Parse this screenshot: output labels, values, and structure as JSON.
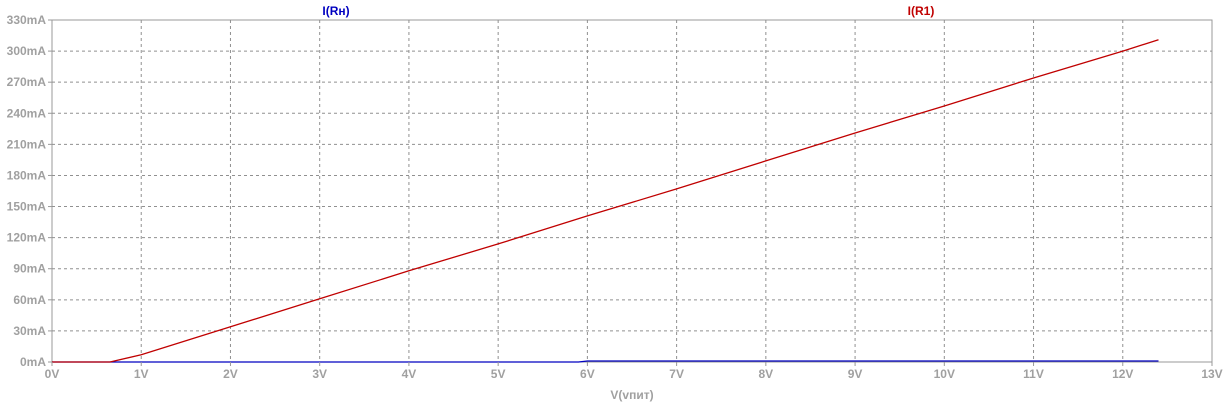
{
  "chart_data": {
    "type": "line",
    "xlabel": "V(vпит)",
    "x_ticks": [
      "0V",
      "1V",
      "2V",
      "3V",
      "4V",
      "5V",
      "6V",
      "7V",
      "8V",
      "9V",
      "10V",
      "11V",
      "12V",
      "13V"
    ],
    "y_ticks": [
      "0mA",
      "30mA",
      "60mA",
      "90mA",
      "120mA",
      "150mA",
      "180mA",
      "210mA",
      "240mA",
      "270mA",
      "300mA",
      "330mA"
    ],
    "xlim": [
      0,
      13
    ],
    "ylim": [
      0,
      330
    ],
    "y_unit": "mA",
    "grid": true,
    "series": [
      {
        "name": "I(Rн)",
        "color": "#0000c0",
        "x": [
          0,
          5.9,
          6.0,
          12.4
        ],
        "y": [
          0,
          0,
          1,
          1
        ]
      },
      {
        "name": "I(R1)",
        "color": "#c00000",
        "x": [
          0,
          0.65,
          1.0,
          2.0,
          3.0,
          4.0,
          5.0,
          6.0,
          7.0,
          8.0,
          9.0,
          10.0,
          11.0,
          12.0,
          12.4
        ],
        "y": [
          0,
          0,
          7,
          34,
          61,
          88,
          114,
          141,
          167,
          194,
          221,
          247,
          274,
          300,
          311
        ]
      }
    ]
  }
}
